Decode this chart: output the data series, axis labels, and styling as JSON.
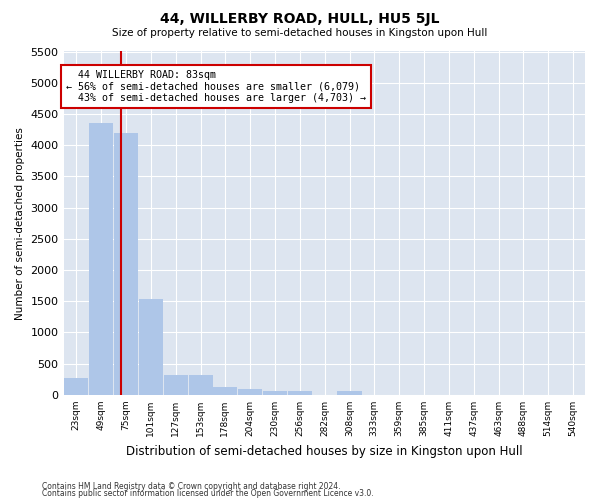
{
  "title": "44, WILLERBY ROAD, HULL, HU5 5JL",
  "subtitle": "Size of property relative to semi-detached houses in Kingston upon Hull",
  "xlabel": "Distribution of semi-detached houses by size in Kingston upon Hull",
  "ylabel": "Number of semi-detached properties",
  "property_label": "44 WILLERBY ROAD: 83sqm",
  "smaller_pct": 56,
  "smaller_count": 6079,
  "larger_pct": 43,
  "larger_count": 4703,
  "bin_labels": [
    "23sqm",
    "49sqm",
    "75sqm",
    "101sqm",
    "127sqm",
    "153sqm",
    "178sqm",
    "204sqm",
    "230sqm",
    "256sqm",
    "282sqm",
    "308sqm",
    "333sqm",
    "359sqm",
    "385sqm",
    "411sqm",
    "437sqm",
    "463sqm",
    "488sqm",
    "514sqm",
    "540sqm"
  ],
  "bin_edges": [
    23,
    49,
    75,
    101,
    127,
    153,
    178,
    204,
    230,
    256,
    282,
    308,
    333,
    359,
    385,
    411,
    437,
    463,
    488,
    514,
    540
  ],
  "bar_values": [
    270,
    4350,
    4200,
    1530,
    320,
    320,
    120,
    100,
    70,
    55,
    0,
    70,
    0,
    0,
    0,
    0,
    0,
    0,
    0,
    0
  ],
  "bar_color": "#aec6e8",
  "vline_color": "#cc0000",
  "vline_x": 83,
  "annotation_box_color": "#cc0000",
  "ylim": [
    0,
    5500
  ],
  "yticks": [
    0,
    500,
    1000,
    1500,
    2000,
    2500,
    3000,
    3500,
    4000,
    4500,
    5000,
    5500
  ],
  "footer1": "Contains HM Land Registry data © Crown copyright and database right 2024.",
  "footer2": "Contains public sector information licensed under the Open Government Licence v3.0.",
  "plot_bg_color": "#dde5f0"
}
